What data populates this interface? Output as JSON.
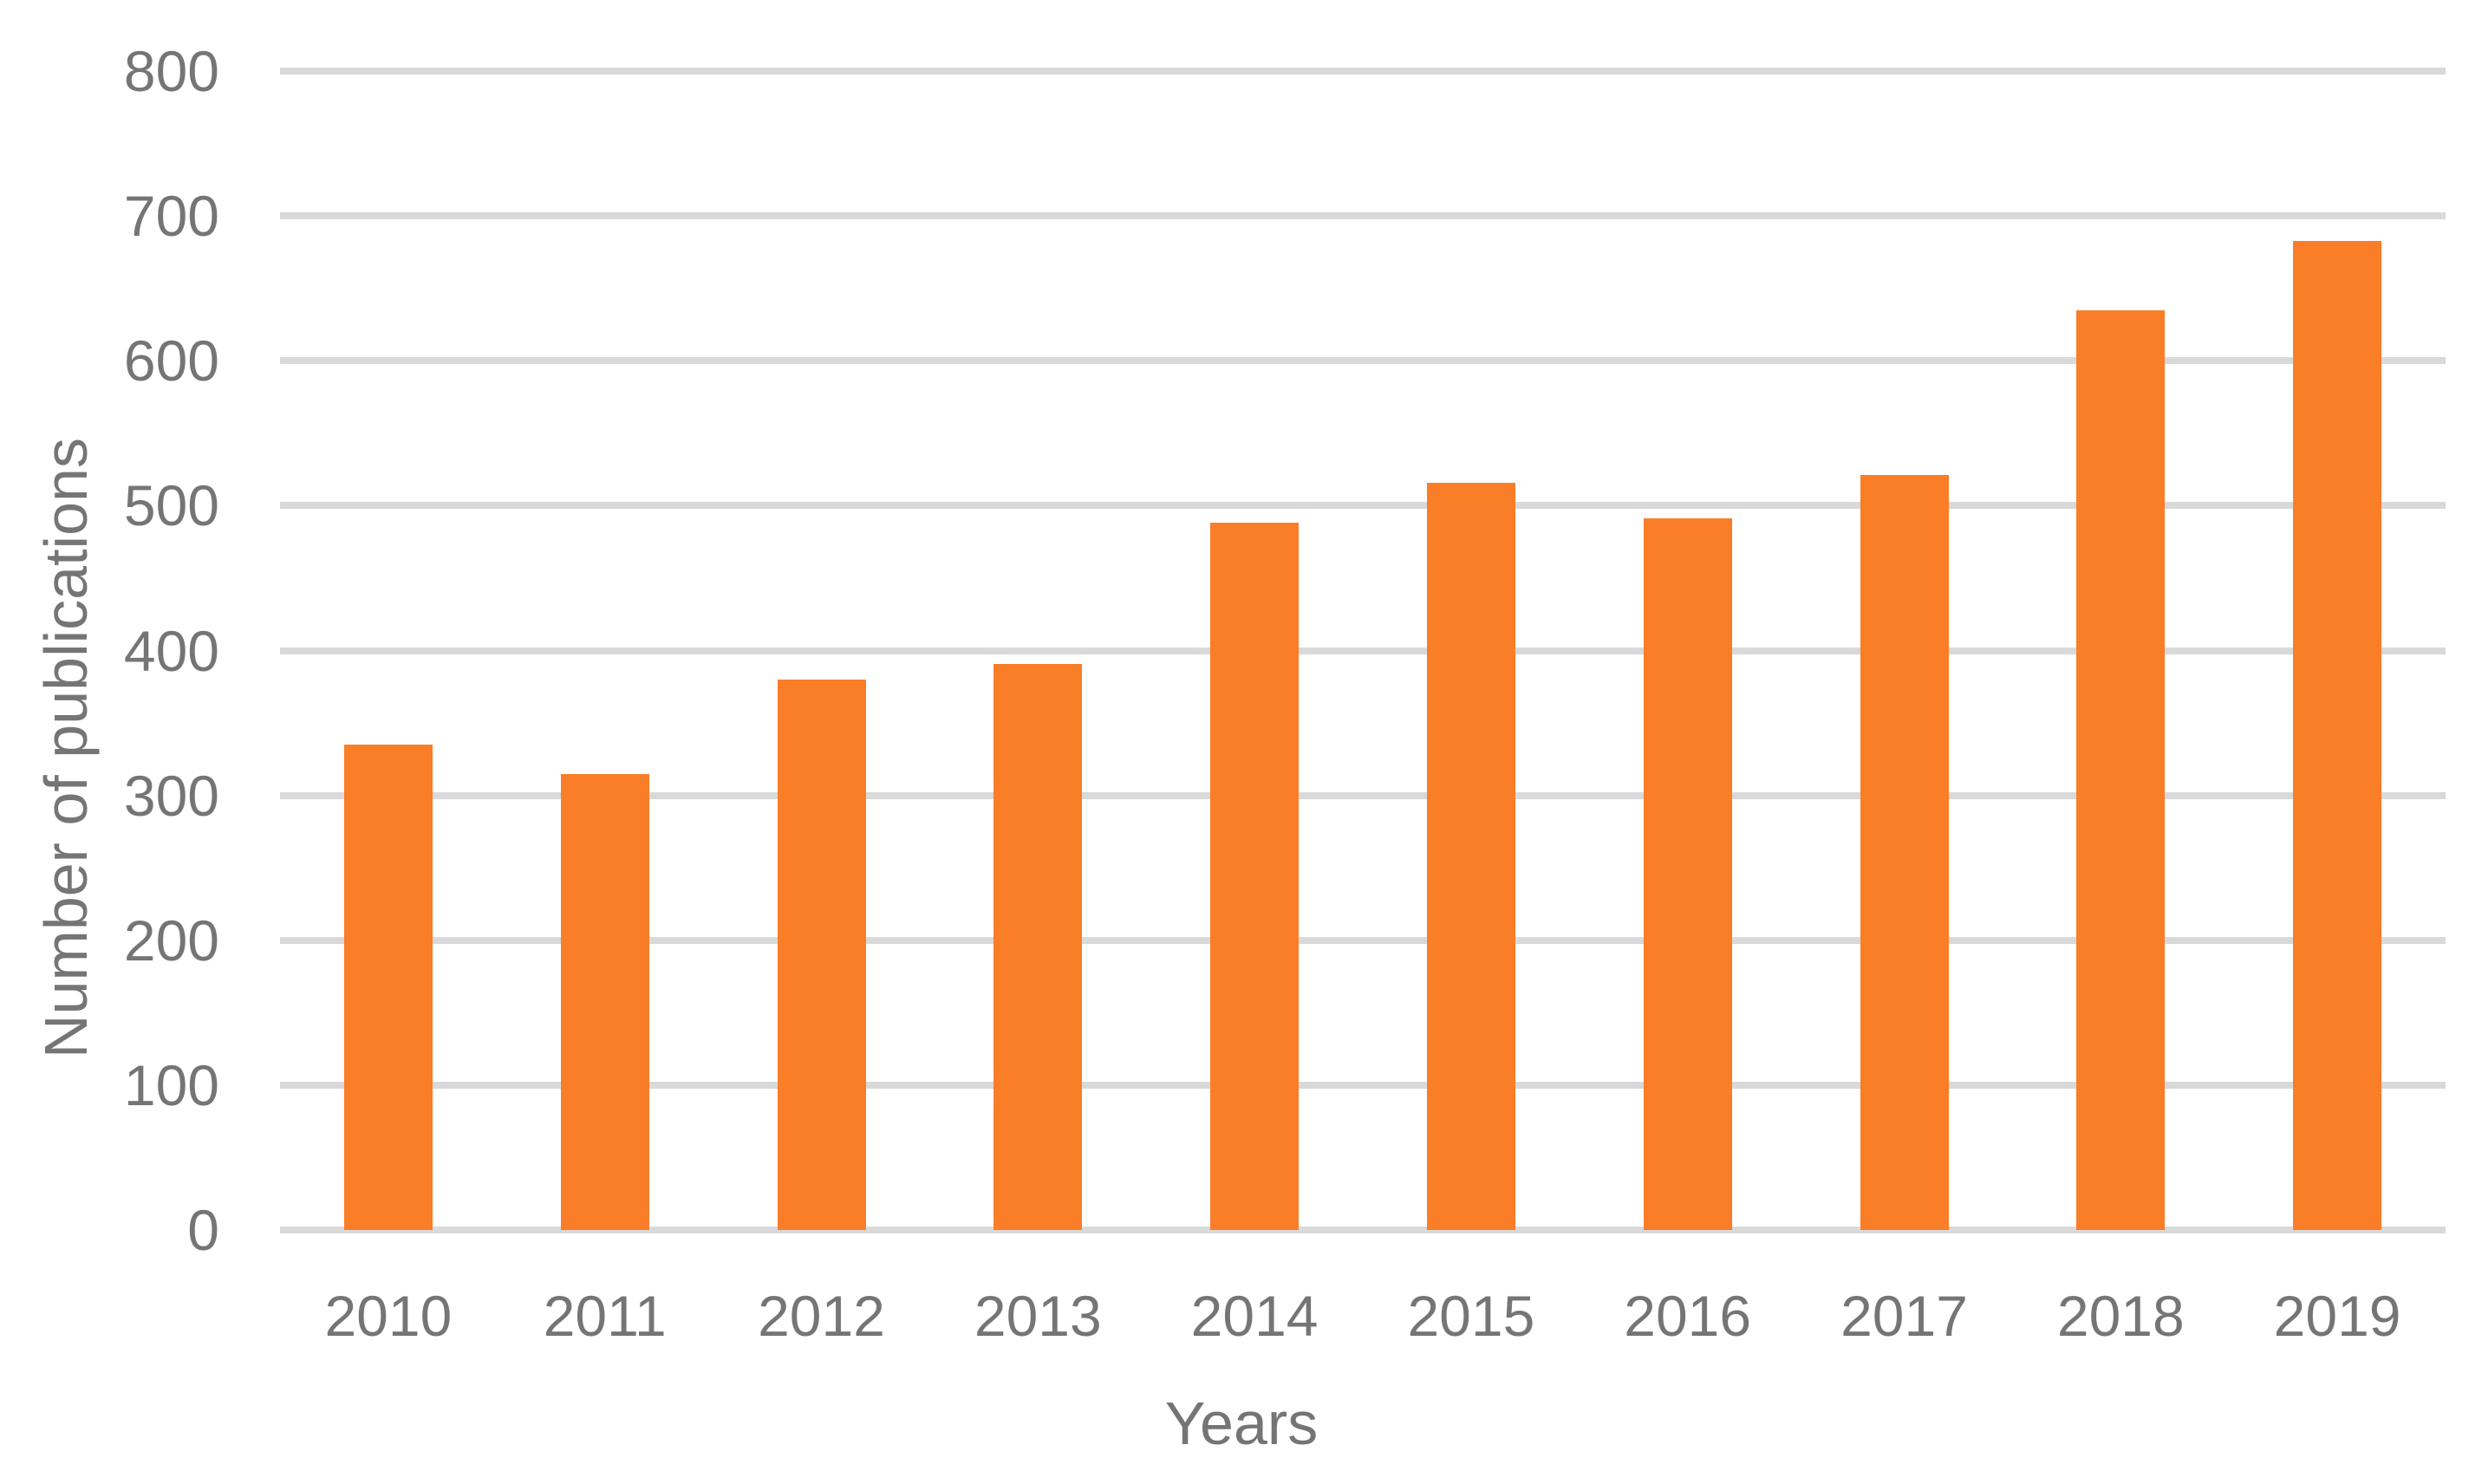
{
  "chart_data": {
    "type": "bar",
    "title": "",
    "xlabel": "Years",
    "ylabel": "Number of publications",
    "categories": [
      "2010",
      "2011",
      "2012",
      "2013",
      "2014",
      "2015",
      "2016",
      "2017",
      "2018",
      "2019"
    ],
    "values": [
      335,
      315,
      380,
      391,
      488,
      516,
      491,
      521,
      635,
      683
    ],
    "ylim": [
      0,
      800
    ],
    "y_ticks": [
      0,
      100,
      200,
      300,
      400,
      500,
      600,
      700,
      800
    ],
    "grid": "horizontal-only",
    "legend_position": "none",
    "colors": {
      "bar": "#FA7D28",
      "gridline": "#D9D9D9",
      "axis_line": "#D9D9D9",
      "text": "#757575"
    }
  }
}
